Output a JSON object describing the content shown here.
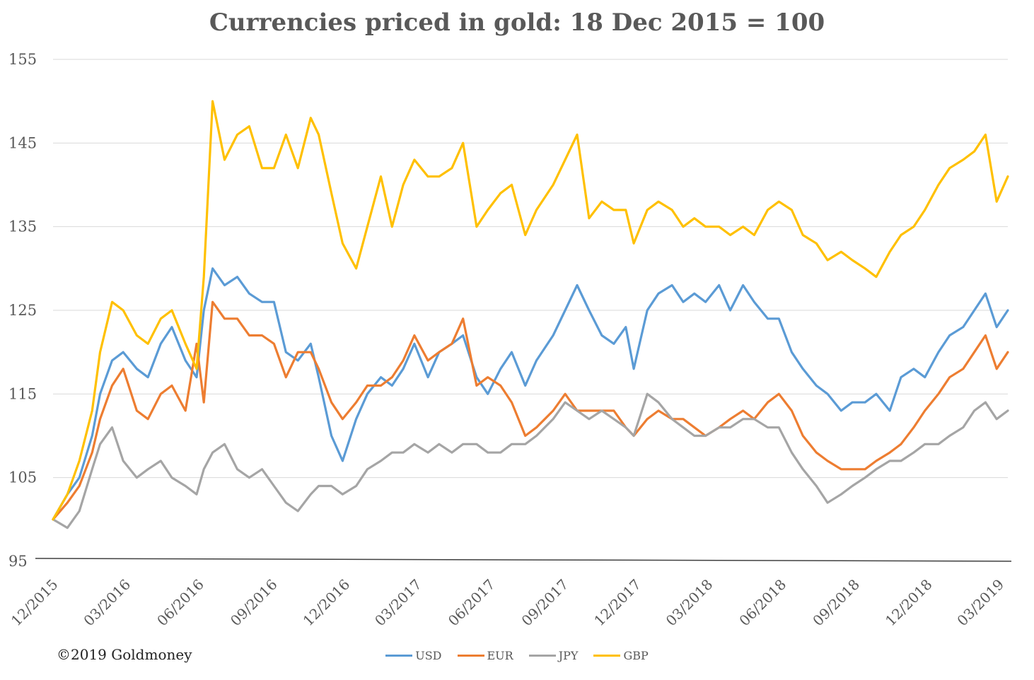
{
  "chart_data": {
    "type": "line",
    "title": "Currencies priced in gold: 18 Dec 2015 = 100",
    "xlabel": "",
    "ylabel": "",
    "ylim": [
      95,
      155
    ],
    "yticks": [
      95,
      105,
      115,
      125,
      135,
      145,
      155
    ],
    "xlim": [
      "2015-12-18",
      "2019-03-29"
    ],
    "xticks": [
      {
        "date": "2015-12-18",
        "label": "12/2015"
      },
      {
        "date": "2016-03-18",
        "label": "03/2016"
      },
      {
        "date": "2016-06-18",
        "label": "06/2016"
      },
      {
        "date": "2016-09-18",
        "label": "09/2016"
      },
      {
        "date": "2016-12-18",
        "label": "12/2016"
      },
      {
        "date": "2017-03-18",
        "label": "03/2017"
      },
      {
        "date": "2017-06-18",
        "label": "06/2017"
      },
      {
        "date": "2017-09-18",
        "label": "09/2017"
      },
      {
        "date": "2017-12-18",
        "label": "12/2017"
      },
      {
        "date": "2018-03-18",
        "label": "03/2018"
      },
      {
        "date": "2018-06-18",
        "label": "06/2018"
      },
      {
        "date": "2018-09-18",
        "label": "09/2018"
      },
      {
        "date": "2018-12-18",
        "label": "12/2018"
      },
      {
        "date": "2019-03-18",
        "label": "03/2019"
      }
    ],
    "grid": true,
    "legend_position": "bottom",
    "series": [
      {
        "name": "USD",
        "color": "#5B9BD5",
        "x": [
          "2015-12-18",
          "2016-01-05",
          "2016-01-20",
          "2016-02-05",
          "2016-02-15",
          "2016-03-01",
          "2016-03-15",
          "2016-04-01",
          "2016-04-15",
          "2016-05-01",
          "2016-05-15",
          "2016-06-01",
          "2016-06-15",
          "2016-06-24",
          "2016-07-05",
          "2016-07-20",
          "2016-08-05",
          "2016-08-20",
          "2016-09-05",
          "2016-09-20",
          "2016-10-05",
          "2016-10-20",
          "2016-11-05",
          "2016-11-15",
          "2016-12-01",
          "2016-12-15",
          "2017-01-01",
          "2017-01-15",
          "2017-02-01",
          "2017-02-15",
          "2017-03-01",
          "2017-03-15",
          "2017-04-01",
          "2017-04-15",
          "2017-05-01",
          "2017-05-15",
          "2017-06-01",
          "2017-06-15",
          "2017-07-01",
          "2017-07-15",
          "2017-08-01",
          "2017-08-15",
          "2017-09-05",
          "2017-09-20",
          "2017-10-05",
          "2017-10-20",
          "2017-11-05",
          "2017-11-20",
          "2017-12-05",
          "2017-12-15",
          "2018-01-01",
          "2018-01-15",
          "2018-02-01",
          "2018-02-15",
          "2018-03-01",
          "2018-03-15",
          "2018-04-01",
          "2018-04-15",
          "2018-05-01",
          "2018-05-15",
          "2018-06-01",
          "2018-06-15",
          "2018-07-01",
          "2018-07-15",
          "2018-08-01",
          "2018-08-15",
          "2018-09-01",
          "2018-09-15",
          "2018-10-01",
          "2018-10-15",
          "2018-11-01",
          "2018-11-15",
          "2018-12-01",
          "2018-12-15",
          "2019-01-01",
          "2019-01-15",
          "2019-02-01",
          "2019-02-15",
          "2019-03-01",
          "2019-03-15",
          "2019-03-29"
        ],
        "values": [
          100,
          103,
          105,
          110,
          115,
          119,
          120,
          118,
          117,
          121,
          123,
          119,
          117,
          125,
          130,
          128,
          129,
          127,
          126,
          126,
          120,
          119,
          121,
          117,
          110,
          107,
          112,
          115,
          117,
          116,
          118,
          121,
          117,
          120,
          121,
          122,
          117,
          115,
          118,
          120,
          116,
          119,
          122,
          125,
          128,
          125,
          122,
          121,
          123,
          118,
          125,
          127,
          128,
          126,
          127,
          126,
          128,
          125,
          128,
          126,
          124,
          124,
          120,
          118,
          116,
          115,
          113,
          114,
          114,
          115,
          113,
          117,
          118,
          117,
          120,
          122,
          123,
          125,
          127,
          123,
          125
        ]
      },
      {
        "name": "EUR",
        "color": "#ED7D31",
        "x": [
          "2015-12-18",
          "2016-01-05",
          "2016-01-20",
          "2016-02-05",
          "2016-02-15",
          "2016-03-01",
          "2016-03-15",
          "2016-04-01",
          "2016-04-15",
          "2016-05-01",
          "2016-05-15",
          "2016-06-01",
          "2016-06-15",
          "2016-06-24",
          "2016-07-05",
          "2016-07-20",
          "2016-08-05",
          "2016-08-20",
          "2016-09-05",
          "2016-09-20",
          "2016-10-05",
          "2016-10-20",
          "2016-11-05",
          "2016-11-15",
          "2016-12-01",
          "2016-12-15",
          "2017-01-01",
          "2017-01-15",
          "2017-02-01",
          "2017-02-15",
          "2017-03-01",
          "2017-03-15",
          "2017-04-01",
          "2017-04-15",
          "2017-05-01",
          "2017-05-15",
          "2017-06-01",
          "2017-06-15",
          "2017-07-01",
          "2017-07-15",
          "2017-08-01",
          "2017-08-15",
          "2017-09-05",
          "2017-09-20",
          "2017-10-05",
          "2017-10-20",
          "2017-11-05",
          "2017-11-20",
          "2017-12-05",
          "2017-12-15",
          "2018-01-01",
          "2018-01-15",
          "2018-02-01",
          "2018-02-15",
          "2018-03-01",
          "2018-03-15",
          "2018-04-01",
          "2018-04-15",
          "2018-05-01",
          "2018-05-15",
          "2018-06-01",
          "2018-06-15",
          "2018-07-01",
          "2018-07-15",
          "2018-08-01",
          "2018-08-15",
          "2018-09-01",
          "2018-09-15",
          "2018-10-01",
          "2018-10-15",
          "2018-11-01",
          "2018-11-15",
          "2018-12-01",
          "2018-12-15",
          "2019-01-01",
          "2019-01-15",
          "2019-02-01",
          "2019-02-15",
          "2019-03-01",
          "2019-03-15",
          "2019-03-29"
        ],
        "values": [
          100,
          102,
          104,
          108,
          112,
          116,
          118,
          113,
          112,
          115,
          116,
          113,
          121,
          114,
          126,
          124,
          124,
          122,
          122,
          121,
          117,
          120,
          120,
          118,
          114,
          112,
          114,
          116,
          116,
          117,
          119,
          122,
          119,
          120,
          121,
          124,
          116,
          117,
          116,
          114,
          110,
          111,
          113,
          115,
          113,
          113,
          113,
          113,
          111,
          110,
          112,
          113,
          112,
          112,
          111,
          110,
          111,
          112,
          113,
          112,
          114,
          115,
          113,
          110,
          108,
          107,
          106,
          106,
          106,
          107,
          108,
          109,
          111,
          113,
          115,
          117,
          118,
          120,
          122,
          118,
          120
        ]
      },
      {
        "name": "JPY",
        "color": "#A5A5A5",
        "x": [
          "2015-12-18",
          "2016-01-05",
          "2016-01-20",
          "2016-02-05",
          "2016-02-15",
          "2016-03-01",
          "2016-03-15",
          "2016-04-01",
          "2016-04-15",
          "2016-05-01",
          "2016-05-15",
          "2016-06-01",
          "2016-06-15",
          "2016-06-24",
          "2016-07-05",
          "2016-07-20",
          "2016-08-05",
          "2016-08-20",
          "2016-09-05",
          "2016-09-20",
          "2016-10-05",
          "2016-10-20",
          "2016-11-05",
          "2016-11-15",
          "2016-12-01",
          "2016-12-15",
          "2017-01-01",
          "2017-01-15",
          "2017-02-01",
          "2017-02-15",
          "2017-03-01",
          "2017-03-15",
          "2017-04-01",
          "2017-04-15",
          "2017-05-01",
          "2017-05-15",
          "2017-06-01",
          "2017-06-15",
          "2017-07-01",
          "2017-07-15",
          "2017-08-01",
          "2017-08-15",
          "2017-09-05",
          "2017-09-20",
          "2017-10-05",
          "2017-10-20",
          "2017-11-05",
          "2017-11-20",
          "2017-12-05",
          "2017-12-15",
          "2018-01-01",
          "2018-01-15",
          "2018-02-01",
          "2018-02-15",
          "2018-03-01",
          "2018-03-15",
          "2018-04-01",
          "2018-04-15",
          "2018-05-01",
          "2018-05-15",
          "2018-06-01",
          "2018-06-15",
          "2018-07-01",
          "2018-07-15",
          "2018-08-01",
          "2018-08-15",
          "2018-09-01",
          "2018-09-15",
          "2018-10-01",
          "2018-10-15",
          "2018-11-01",
          "2018-11-15",
          "2018-12-01",
          "2018-12-15",
          "2019-01-01",
          "2019-01-15",
          "2019-02-01",
          "2019-02-15",
          "2019-03-01",
          "2019-03-15",
          "2019-03-29"
        ],
        "values": [
          100,
          99,
          101,
          106,
          109,
          111,
          107,
          105,
          106,
          107,
          105,
          104,
          103,
          106,
          108,
          109,
          106,
          105,
          106,
          104,
          102,
          101,
          103,
          104,
          104,
          103,
          104,
          106,
          107,
          108,
          108,
          109,
          108,
          109,
          108,
          109,
          109,
          108,
          108,
          109,
          109,
          110,
          112,
          114,
          113,
          112,
          113,
          112,
          111,
          110,
          115,
          114,
          112,
          111,
          110,
          110,
          111,
          111,
          112,
          112,
          111,
          111,
          108,
          106,
          104,
          102,
          103,
          104,
          105,
          106,
          107,
          107,
          108,
          109,
          109,
          110,
          111,
          113,
          114,
          112,
          113
        ]
      },
      {
        "name": "GBP",
        "color": "#FFC000",
        "x": [
          "2015-12-18",
          "2016-01-05",
          "2016-01-20",
          "2016-02-05",
          "2016-02-15",
          "2016-03-01",
          "2016-03-15",
          "2016-04-01",
          "2016-04-15",
          "2016-05-01",
          "2016-05-15",
          "2016-06-01",
          "2016-06-15",
          "2016-06-24",
          "2016-07-05",
          "2016-07-20",
          "2016-08-05",
          "2016-08-20",
          "2016-09-05",
          "2016-09-20",
          "2016-10-05",
          "2016-10-20",
          "2016-11-05",
          "2016-11-15",
          "2016-12-01",
          "2016-12-15",
          "2017-01-01",
          "2017-01-15",
          "2017-02-01",
          "2017-02-15",
          "2017-03-01",
          "2017-03-15",
          "2017-04-01",
          "2017-04-15",
          "2017-05-01",
          "2017-05-15",
          "2017-06-01",
          "2017-06-15",
          "2017-07-01",
          "2017-07-15",
          "2017-08-01",
          "2017-08-15",
          "2017-09-05",
          "2017-09-20",
          "2017-10-05",
          "2017-10-20",
          "2017-11-05",
          "2017-11-20",
          "2017-12-05",
          "2017-12-15",
          "2018-01-01",
          "2018-01-15",
          "2018-02-01",
          "2018-02-15",
          "2018-03-01",
          "2018-03-15",
          "2018-04-01",
          "2018-04-15",
          "2018-05-01",
          "2018-05-15",
          "2018-06-01",
          "2018-06-15",
          "2018-07-01",
          "2018-07-15",
          "2018-08-01",
          "2018-08-15",
          "2018-09-01",
          "2018-09-15",
          "2018-10-01",
          "2018-10-15",
          "2018-11-01",
          "2018-11-15",
          "2018-12-01",
          "2018-12-15",
          "2019-01-01",
          "2019-01-15",
          "2019-02-01",
          "2019-02-15",
          "2019-03-01",
          "2019-03-15",
          "2019-03-29"
        ],
        "values": [
          100,
          103,
          107,
          113,
          120,
          126,
          125,
          122,
          121,
          124,
          125,
          121,
          118,
          129,
          150,
          143,
          146,
          147,
          142,
          142,
          146,
          142,
          148,
          146,
          139,
          133,
          130,
          135,
          141,
          135,
          140,
          143,
          141,
          141,
          142,
          145,
          135,
          137,
          139,
          140,
          134,
          137,
          140,
          143,
          146,
          136,
          138,
          137,
          137,
          133,
          137,
          138,
          137,
          135,
          136,
          135,
          135,
          134,
          135,
          134,
          137,
          138,
          137,
          134,
          133,
          131,
          132,
          131,
          130,
          129,
          132,
          134,
          135,
          137,
          140,
          142,
          143,
          144,
          146,
          138,
          141
        ]
      }
    ]
  },
  "copyright": "©2019 Goldmoney"
}
